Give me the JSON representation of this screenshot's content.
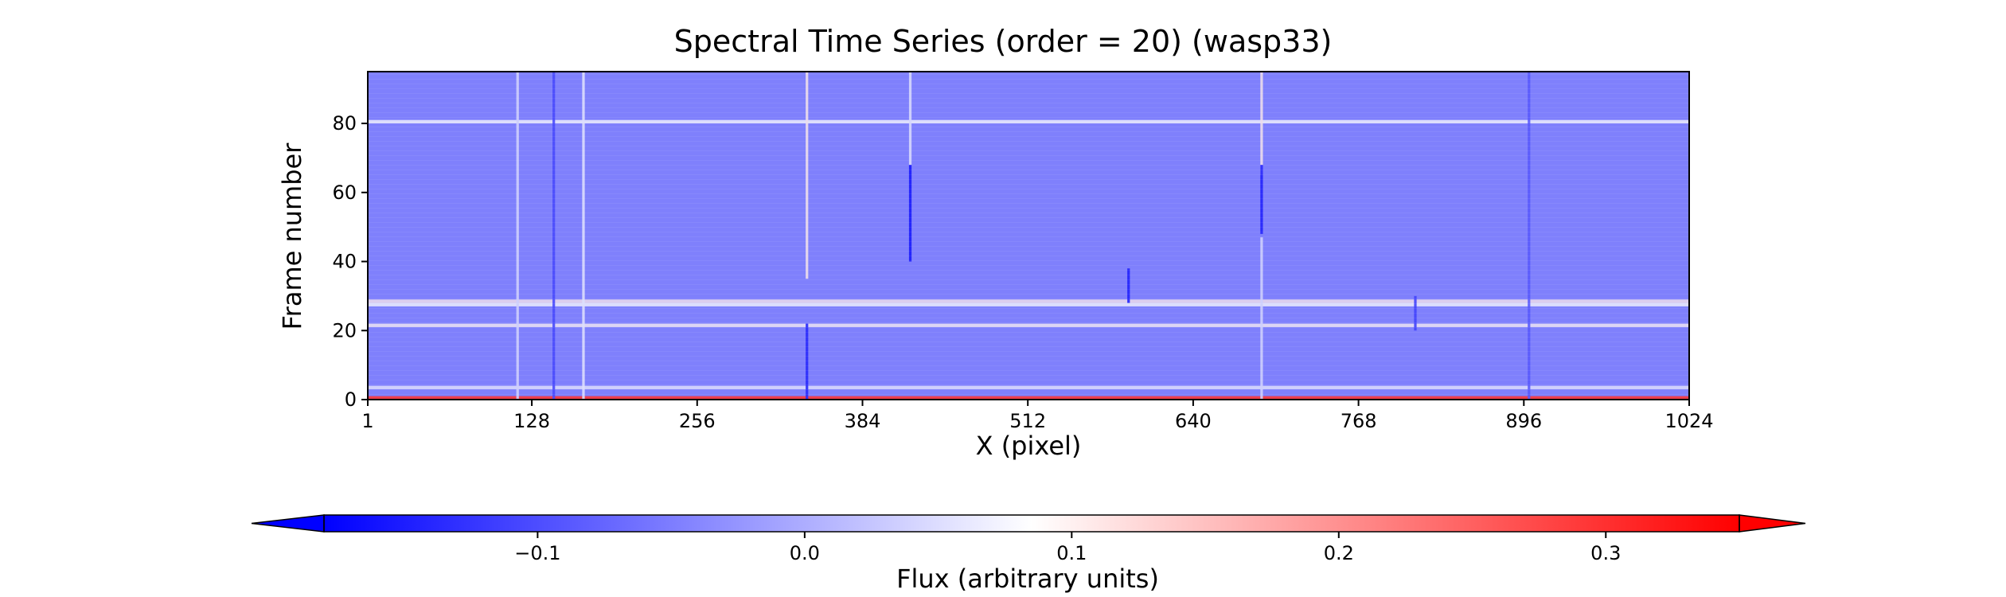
{
  "chart_data": {
    "type": "heatmap",
    "title": "Spectral Time Series (order = 20) (wasp33)",
    "xlabel": "X (pixel)",
    "ylabel": "Frame number",
    "xlim": [
      1,
      1024
    ],
    "ylim": [
      0,
      95
    ],
    "x_ticks": [
      1,
      128,
      256,
      384,
      512,
      640,
      768,
      896,
      1024
    ],
    "x_tick_labels": [
      "1",
      "128",
      "256",
      "384",
      "512",
      "640",
      "768",
      "896",
      "1024"
    ],
    "y_ticks": [
      0,
      20,
      40,
      60,
      80
    ],
    "y_tick_labels": [
      "0",
      "20",
      "40",
      "60",
      "80"
    ],
    "colormap": "bwr",
    "colormap_colors": [
      "#0000ff",
      "#ffffff",
      "#ff0000"
    ],
    "baseline_flux": -0.04,
    "colorbar": {
      "label": "Flux (arbitrary units)",
      "range": [
        -0.18,
        0.35
      ],
      "center": 0.1,
      "ticks": [
        -0.1,
        0.0,
        0.1,
        0.2,
        0.3
      ],
      "tick_labels": [
        "−0.1",
        "0.0",
        "0.1",
        "0.2",
        "0.3"
      ],
      "extend": "both",
      "orientation": "horizontal"
    },
    "vertical_features": [
      {
        "x": 117,
        "flux": 0.06,
        "frames": [
          0,
          95
        ]
      },
      {
        "x": 145,
        "flux": -0.11,
        "frames": [
          0,
          95
        ]
      },
      {
        "x": 168,
        "flux": 0.08,
        "frames": [
          0,
          95
        ]
      },
      {
        "x": 341,
        "flux": 0.12,
        "frames": [
          35,
          95
        ]
      },
      {
        "x": 341,
        "flux": -0.15,
        "frames": [
          0,
          22
        ]
      },
      {
        "x": 421,
        "flux": -0.17,
        "frames": [
          40,
          68
        ]
      },
      {
        "x": 421,
        "flux": 0.07,
        "frames": [
          68,
          95
        ]
      },
      {
        "x": 590,
        "flux": -0.16,
        "frames": [
          28,
          38
        ]
      },
      {
        "x": 693,
        "flux": 0.12,
        "frames": [
          65,
          95
        ]
      },
      {
        "x": 693,
        "flux": -0.16,
        "frames": [
          48,
          68
        ]
      },
      {
        "x": 693,
        "flux": 0.06,
        "frames": [
          0,
          47
        ]
      },
      {
        "x": 812,
        "flux": -0.12,
        "frames": [
          20,
          30
        ]
      },
      {
        "x": 900,
        "flux": -0.09,
        "frames": [
          0,
          95
        ]
      }
    ],
    "horizontal_features": [
      {
        "frame": 80,
        "flux": 0.1
      },
      {
        "frame": 28,
        "flux": 0.12
      },
      {
        "frame": 27,
        "flux": 0.1
      },
      {
        "frame": 21,
        "flux": 0.11
      },
      {
        "frame": 3,
        "flux": 0.08
      },
      {
        "frame": 0,
        "flux": 0.3
      }
    ]
  }
}
